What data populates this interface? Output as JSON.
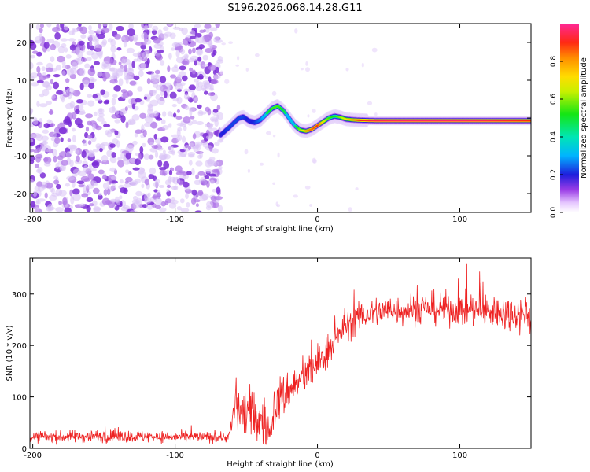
{
  "title": "S196.2026.068.14.28.G11",
  "chart_data": [
    {
      "type": "heatmap",
      "name": "spectrogram",
      "xlabel": "Height of straight line (km)",
      "ylabel": "Frequency (Hz)",
      "xlim": [
        -202,
        150
      ],
      "ylim": [
        -25,
        25
      ],
      "xticks": [
        -200,
        -100,
        0,
        100
      ],
      "yticks": [
        -20,
        -10,
        0,
        10,
        20
      ],
      "colorbar": {
        "label": "Normalized spectral amplitude",
        "range": [
          0,
          1
        ],
        "ticks": [
          0.0,
          0.2,
          0.4,
          0.6,
          0.8
        ],
        "tick_labels": [
          "0.0",
          "0.2",
          "0.4",
          "0.6",
          "0.8"
        ]
      },
      "noise_region_x": [
        -202,
        -68
      ],
      "ridge": {
        "x": [
          -68,
          -62,
          -58,
          -55,
          -52,
          -48,
          -44,
          -40,
          -36,
          -32,
          -28,
          -24,
          -20,
          -16,
          -12,
          -8,
          -4,
          0,
          4,
          8,
          12,
          16,
          20,
          25,
          30,
          40,
          60,
          80,
          100,
          120,
          150
        ],
        "freq": [
          -4.5,
          -2.5,
          -1.0,
          0.0,
          0.3,
          -0.8,
          -1.2,
          -0.5,
          1.0,
          2.5,
          3.2,
          2.0,
          0.0,
          -2.0,
          -3.2,
          -3.5,
          -3.0,
          -2.0,
          -1.0,
          0.0,
          0.5,
          0.2,
          -0.3,
          -0.5,
          -0.6,
          -0.7,
          -0.7,
          -0.7,
          -0.7,
          -0.7,
          -0.7
        ],
        "amplitude": [
          0.25,
          0.3,
          0.3,
          0.3,
          0.3,
          0.25,
          0.28,
          0.35,
          0.45,
          0.55,
          0.55,
          0.5,
          0.4,
          0.45,
          0.6,
          0.8,
          0.85,
          0.9,
          0.7,
          0.55,
          0.5,
          0.6,
          0.7,
          0.8,
          0.9,
          0.95,
          0.97,
          0.97,
          0.97,
          0.95,
          0.9
        ]
      }
    },
    {
      "type": "line",
      "name": "snr",
      "xlabel": "Height of straight line (km)",
      "ylabel": "SNR (10 * v/v)",
      "xlim": [
        -202,
        150
      ],
      "ylim": [
        0,
        370
      ],
      "xticks": [
        -200,
        -100,
        0,
        100
      ],
      "yticks": [
        0,
        100,
        200,
        300
      ],
      "series": [
        {
          "name": "SNR",
          "color": "#ee2222",
          "envelope_x": [
            -202,
            -150,
            -100,
            -62,
            -58,
            -50,
            -40,
            -33,
            -30,
            -20,
            -10,
            0,
            10,
            20,
            30,
            40,
            60,
            80,
            100,
            120,
            150
          ],
          "envelope_mean": [
            22,
            24,
            22,
            22,
            80,
            70,
            55,
            30,
            85,
            115,
            135,
            165,
            200,
            240,
            255,
            265,
            270,
            272,
            270,
            265,
            262
          ],
          "envelope_spread": [
            10,
            12,
            10,
            10,
            40,
            50,
            45,
            25,
            45,
            40,
            35,
            35,
            30,
            30,
            28,
            28,
            28,
            30,
            30,
            32,
            35
          ]
        }
      ]
    }
  ]
}
